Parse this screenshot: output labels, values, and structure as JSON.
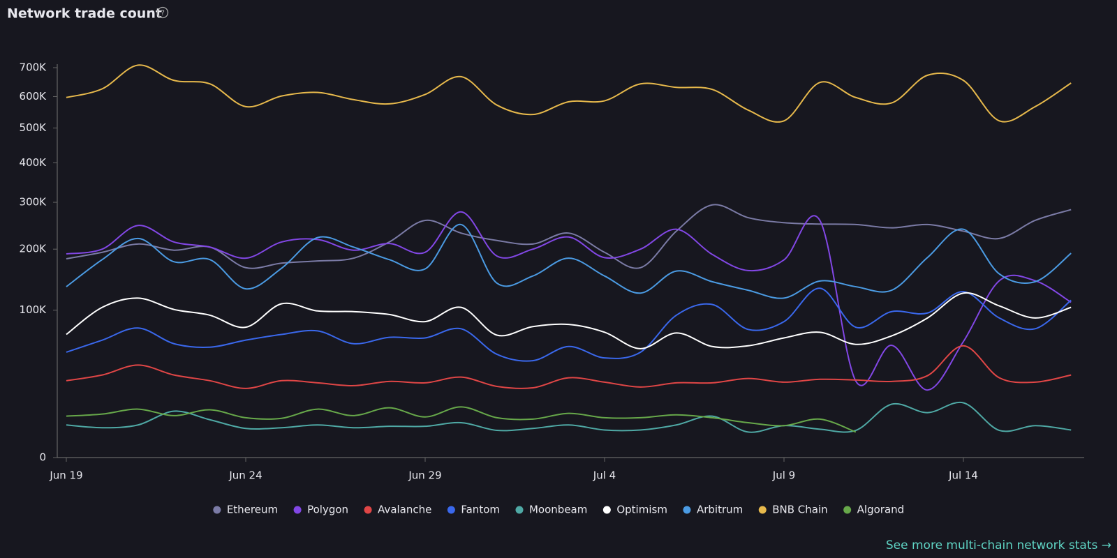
{
  "chart_data": {
    "type": "line",
    "title": "Network trade count",
    "link": "See more multi-chain network stats →",
    "yscale": "sqrt",
    "ylim": [
      0,
      700000
    ],
    "yticks": [
      0,
      {
        "value": 100000,
        "label": "100K"
      },
      {
        "value": 200000,
        "label": "200K"
      },
      {
        "value": 300000,
        "label": "300K"
      },
      {
        "value": 400000,
        "label": "400K"
      },
      {
        "value": 500000,
        "label": "500K"
      },
      {
        "value": 600000,
        "label": "600K"
      },
      {
        "value": 700000,
        "label": "700K"
      }
    ],
    "legend": "bottom",
    "categories": [
      "Jun 19",
      null,
      null,
      null,
      null,
      "Jun 24",
      null,
      null,
      null,
      null,
      "Jun 29",
      null,
      null,
      null,
      null,
      "Jul 4",
      null,
      null,
      null,
      null,
      "Jul 9",
      null,
      null,
      null,
      null,
      "Jul 14",
      null,
      null,
      null
    ],
    "series": [
      {
        "name": "Ethereum",
        "color": "#7b7ba6",
        "values": [
          182000,
          194000,
          210000,
          198000,
          204000,
          166000,
          174000,
          178000,
          183000,
          214000,
          259000,
          232000,
          217000,
          210000,
          232000,
          194000,
          166000,
          236000,
          294000,
          265000,
          254000,
          251000,
          250000,
          243000,
          250000,
          236000,
          221000,
          259000,
          283000
        ]
      },
      {
        "name": "Polygon",
        "color": "#8247e5",
        "values": [
          191000,
          200000,
          248000,
          214000,
          204000,
          183000,
          214000,
          219000,
          198000,
          211000,
          194000,
          278000,
          187000,
          200000,
          224000,
          184000,
          200000,
          240000,
          190000,
          161000,
          180000,
          259000,
          27000,
          58000,
          21000,
          62000,
          144000,
          144000,
          111000
        ]
      },
      {
        "name": "Avalanche",
        "color": "#e04646",
        "values": [
          27200,
          31400,
          39400,
          31400,
          27200,
          22000,
          27200,
          25700,
          23800,
          26700,
          25700,
          29800,
          23300,
          22400,
          29300,
          26200,
          22900,
          25700,
          25700,
          28800,
          26200,
          28200,
          27700,
          26700,
          30900,
          57500,
          29300,
          26200,
          31400
        ]
      },
      {
        "name": "Fantom",
        "color": "#3a68ec",
        "values": [
          51100,
          63500,
          77300,
          59700,
          56100,
          63500,
          69800,
          73900,
          59700,
          66600,
          65900,
          76400,
          49100,
          43200,
          56800,
          45700,
          51100,
          93300,
          107900,
          75600,
          85100,
          132000,
          78200,
          98100,
          96200,
          126700,
          89700,
          76400,
          114000
        ]
      },
      {
        "name": "Moonbeam",
        "color": "#4fa9a5",
        "values": [
          4900,
          4100,
          4900,
          9900,
          6600,
          3900,
          4100,
          4900,
          4100,
          4500,
          4500,
          5600,
          3400,
          3900,
          4900,
          3500,
          3500,
          4900,
          7900,
          3000,
          4700,
          3700,
          3400,
          13100,
          9300,
          13800,
          3400,
          4700,
          3500
        ]
      },
      {
        "name": "Optimism",
        "color": "#ffffff",
        "values": [
          69800,
          103900,
          117100,
          101000,
          93300,
          78200,
          108900,
          99000,
          98100,
          94300,
          85100,
          103900,
          69000,
          79000,
          81600,
          72300,
          54600,
          71500,
          56800,
          57500,
          65900,
          72300,
          59000,
          68200,
          89700,
          124500,
          105900,
          89700,
          103900
        ]
      },
      {
        "name": "Arbitrum",
        "color": "#4b9be3",
        "values": [
          134400,
          180400,
          221000,
          176500,
          180400,
          131100,
          165100,
          222800,
          204000,
          180400,
          163900,
          250000,
          140100,
          151800,
          183000,
          151800,
          124500,
          160200,
          142400,
          128900,
          117100,
          143500,
          134400,
          128900,
          184300,
          240000,
          155300,
          142400,
          192200
        ]
      },
      {
        "name": "BNB Chain",
        "color": "#e7b94c",
        "values": [
          597000,
          626000,
          709000,
          655000,
          643000,
          567000,
          602000,
          614000,
          590000,
          576000,
          607000,
          668000,
          572000,
          542000,
          583000,
          586000,
          643000,
          631000,
          624000,
          556000,
          522000,
          648000,
          597000,
          579000,
          673000,
          655000,
          522000,
          567000,
          646000
        ]
      },
      {
        "name": "Algorand",
        "color": "#67a84a",
        "values": [
          7900,
          8700,
          10800,
          8100,
          10500,
          7300,
          7100,
          10800,
          8100,
          11400,
          7600,
          11800,
          7300,
          6800,
          9000,
          7300,
          7300,
          8400,
          7300,
          5600,
          4700,
          6800,
          3000,
          null,
          null,
          null,
          null,
          null,
          null
        ]
      }
    ]
  }
}
